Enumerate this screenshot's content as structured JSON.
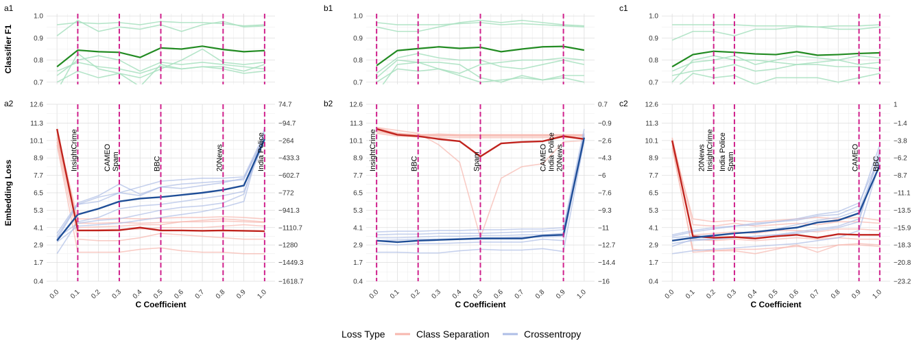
{
  "colors": {
    "f1_main": "#228b22",
    "f1_faint": "#a8e0c0",
    "cs_main": "#c0231d",
    "cs_faint": "#f7b7ae",
    "ce_main": "#1f4e97",
    "ce_faint": "#aebee6",
    "vline": "#d0208c",
    "grid": "#dddddd"
  },
  "legend": {
    "title": "Loss Type",
    "items": [
      "Class Separation",
      "Crossentropy"
    ]
  },
  "chart_data": [
    {
      "panel": "a",
      "type": "line",
      "top_label": "a1",
      "bottom_label": "a2",
      "xlabel": "C Coefficient",
      "f1_ylabel": "Classifier F1",
      "loss_ylabel": "Embedding Loss",
      "x": [
        0.0,
        0.1,
        0.2,
        0.3,
        0.4,
        0.5,
        0.6,
        0.7,
        0.8,
        0.9,
        1.0
      ],
      "x_tick_labels": [
        "0.0",
        "0.1",
        "0.2",
        "0.3",
        "0.4",
        "0.5",
        "0.6",
        "0.7",
        "0.8",
        "0.9",
        "1.0"
      ],
      "f1_ylim": [
        0.69,
        1.01
      ],
      "f1_ticks": [
        0.7,
        0.8,
        0.9,
        1.0
      ],
      "f1_tick_labels": [
        "0.7",
        "0.8",
        "0.9",
        "1.0"
      ],
      "f1_mean": [
        0.77,
        0.845,
        0.838,
        0.835,
        0.812,
        0.855,
        0.85,
        0.863,
        0.848,
        0.838,
        0.843
      ],
      "f1_datasets": [
        [
          0.96,
          0.97,
          0.965,
          0.97,
          0.96,
          0.975,
          0.97,
          0.97,
          0.965,
          0.955,
          0.96
        ],
        [
          0.91,
          0.98,
          0.93,
          0.95,
          0.94,
          0.96,
          0.93,
          0.96,
          0.975,
          0.95,
          0.955
        ],
        [
          0.73,
          0.8,
          0.82,
          0.8,
          0.75,
          0.79,
          0.78,
          0.79,
          0.78,
          0.77,
          0.76
        ],
        [
          0.75,
          0.79,
          0.77,
          0.76,
          0.74,
          0.77,
          0.76,
          0.77,
          0.76,
          0.74,
          0.75
        ],
        [
          0.66,
          0.83,
          0.76,
          0.74,
          0.72,
          0.76,
          0.8,
          0.85,
          0.79,
          0.78,
          0.79
        ],
        [
          0.7,
          0.75,
          0.72,
          0.74,
          0.68,
          0.78,
          0.76,
          0.77,
          0.77,
          0.75,
          0.78
        ]
      ],
      "loss_ylim": [
        0.4,
        12.6
      ],
      "loss_ticks": [
        0.4,
        1.7,
        2.9,
        4.1,
        5.3,
        6.5,
        7.7,
        8.9,
        10.1,
        11.3,
        12.6
      ],
      "loss_tick_labels": [
        "0.4",
        "1.7",
        "2.9",
        "4.1",
        "5.3",
        "6.5",
        "7.7",
        "8.9",
        "10.1",
        "11.3",
        "12.6"
      ],
      "right_tick_labels": [
        "−1618.7",
        "−1449.3",
        "−1280",
        "−1110.7",
        "−941.3",
        "−772",
        "−602.7",
        "−433.3",
        "−264",
        "−94.7",
        "74.7"
      ],
      "cs_mean": [
        10.9,
        3.9,
        3.9,
        3.92,
        4.1,
        3.9,
        3.9,
        3.88,
        3.9,
        3.88,
        3.85
      ],
      "cs_datasets": [
        [
          10.7,
          4.7,
          4.7,
          4.75,
          4.7,
          4.75,
          4.8,
          4.8,
          4.85,
          4.8,
          4.7
        ],
        [
          10.5,
          4.4,
          4.4,
          4.45,
          4.4,
          4.45,
          4.5,
          4.5,
          4.55,
          4.5,
          4.45
        ],
        [
          10.0,
          3.3,
          3.2,
          3.2,
          3.4,
          3.7,
          3.6,
          3.5,
          3.4,
          3.3,
          3.3
        ],
        [
          9.8,
          2.4,
          2.4,
          2.4,
          2.6,
          2.7,
          2.5,
          2.4,
          2.4,
          2.3,
          2.3
        ],
        [
          10.2,
          4.1,
          4.15,
          4.2,
          4.3,
          4.3,
          4.5,
          4.6,
          4.7,
          4.6,
          4.5
        ],
        [
          10.3,
          3.9,
          3.95,
          4.0,
          4.0,
          4.1,
          4.1,
          4.1,
          4.2,
          4.3,
          4.2
        ]
      ],
      "ce_mean": [
        3.2,
        5.0,
        5.4,
        5.9,
        6.1,
        6.2,
        6.35,
        6.5,
        6.7,
        7.0,
        10.2
      ],
      "ce_datasets": [
        [
          3.7,
          5.8,
          6.3,
          7.1,
          6.4,
          6.9,
          7.1,
          7.2,
          7.3,
          7.4,
          10.5
        ],
        [
          3.3,
          5.7,
          6.2,
          6.5,
          6.9,
          7.3,
          7.4,
          7.5,
          7.5,
          7.6,
          10.6
        ],
        [
          3.5,
          5.7,
          5.9,
          6.5,
          6.3,
          6.9,
          6.8,
          7.0,
          7.2,
          7.5,
          10.3
        ],
        [
          3.4,
          4.4,
          4.6,
          4.7,
          5.0,
          5.3,
          5.5,
          5.6,
          5.8,
          6.4,
          10.8
        ],
        [
          2.3,
          4.5,
          4.8,
          5.4,
          5.6,
          5.7,
          5.9,
          6.1,
          6.3,
          6.6,
          10.1
        ],
        [
          3.1,
          4.2,
          4.3,
          4.4,
          4.6,
          4.8,
          5.0,
          5.2,
          5.5,
          5.9,
          11.0
        ]
      ],
      "vlines": [
        {
          "x": 0.1,
          "label": "InsightCrime"
        },
        {
          "x": 0.3,
          "label": "Spam"
        },
        {
          "x": 0.3,
          "label": "CAMEO"
        },
        {
          "x": 0.5,
          "label": "BBC"
        },
        {
          "x": 0.8,
          "label": "20News"
        },
        {
          "x": 1.0,
          "label": "India Police"
        }
      ]
    },
    {
      "panel": "b",
      "type": "line",
      "top_label": "b1",
      "bottom_label": "b2",
      "xlabel": "C Coefficient",
      "x": [
        0.0,
        0.1,
        0.2,
        0.3,
        0.4,
        0.5,
        0.6,
        0.7,
        0.8,
        0.9,
        1.0
      ],
      "x_tick_labels": [
        "0.0",
        "0.1",
        "0.2",
        "0.3",
        "0.4",
        "0.5",
        "0.6",
        "0.7",
        "0.8",
        "0.9",
        "1.0"
      ],
      "f1_ylim": [
        0.69,
        1.01
      ],
      "f1_ticks": [
        0.7,
        0.8,
        0.9,
        1.0
      ],
      "f1_tick_labels": [
        "0.7",
        "0.8",
        "0.9",
        "1.0"
      ],
      "f1_mean": [
        0.775,
        0.843,
        0.852,
        0.86,
        0.853,
        0.858,
        0.838,
        0.85,
        0.86,
        0.862,
        0.845
      ],
      "f1_datasets": [
        [
          0.97,
          0.96,
          0.96,
          0.96,
          0.965,
          0.97,
          0.96,
          0.965,
          0.96,
          0.955,
          0.95
        ],
        [
          0.95,
          0.93,
          0.93,
          0.95,
          0.97,
          0.98,
          0.97,
          0.98,
          0.97,
          0.96,
          0.955
        ],
        [
          0.74,
          0.81,
          0.83,
          0.81,
          0.8,
          0.8,
          0.77,
          0.76,
          0.78,
          0.8,
          0.78
        ],
        [
          0.72,
          0.8,
          0.79,
          0.79,
          0.78,
          0.72,
          0.7,
          0.73,
          0.71,
          0.73,
          0.73
        ],
        [
          0.65,
          0.78,
          0.79,
          0.76,
          0.74,
          0.78,
          0.79,
          0.8,
          0.8,
          0.81,
          0.8
        ],
        [
          0.7,
          0.76,
          0.75,
          0.76,
          0.73,
          0.7,
          0.71,
          0.72,
          0.71,
          0.72,
          0.7
        ]
      ],
      "loss_ylim": [
        0.4,
        12.6
      ],
      "loss_ticks": [
        0.4,
        1.7,
        2.9,
        4.1,
        5.3,
        6.5,
        7.7,
        8.9,
        10.1,
        11.3,
        12.6
      ],
      "loss_tick_labels": [
        "0.4",
        "1.7",
        "2.9",
        "4.1",
        "5.3",
        "6.5",
        "7.7",
        "8.9",
        "10.1",
        "11.3",
        "12.6"
      ],
      "right_tick_labels": [
        "−16",
        "−14.4",
        "−12.7",
        "−11",
        "−9.3",
        "−7.6",
        "−6",
        "−4.3",
        "−2.6",
        "−0.9",
        "0.7"
      ],
      "cs_mean": [
        10.9,
        10.5,
        10.4,
        10.2,
        10.05,
        9.0,
        9.9,
        10.0,
        10.05,
        10.4,
        10.2
      ],
      "cs_datasets": [
        [
          11.0,
          10.6,
          10.5,
          10.5,
          10.5,
          10.5,
          10.5,
          10.5,
          10.5,
          10.5,
          10.5
        ],
        [
          10.8,
          10.45,
          10.45,
          10.4,
          10.45,
          10.45,
          10.45,
          10.45,
          10.45,
          10.45,
          10.45
        ],
        [
          10.7,
          10.5,
          10.4,
          10.45,
          10.4,
          10.4,
          10.4,
          10.4,
          10.4,
          10.4,
          10.4
        ],
        [
          10.9,
          10.6,
          10.5,
          10.55,
          10.5,
          10.5,
          10.5,
          10.5,
          10.5,
          10.5,
          10.5
        ],
        [
          11.0,
          10.8,
          10.6,
          9.8,
          8.6,
          3.4,
          7.5,
          8.3,
          8.5,
          10.0,
          10.1
        ],
        [
          10.6,
          10.4,
          10.35,
          10.3,
          10.3,
          10.3,
          10.3,
          10.3,
          10.3,
          10.3,
          10.3
        ]
      ],
      "ce_mean": [
        3.2,
        3.1,
        3.2,
        3.25,
        3.3,
        3.35,
        3.35,
        3.35,
        3.55,
        3.6,
        10.3
      ],
      "ce_datasets": [
        [
          3.6,
          3.65,
          3.65,
          3.7,
          3.7,
          3.7,
          3.75,
          3.8,
          3.85,
          3.95,
          10.4
        ],
        [
          3.8,
          3.85,
          3.85,
          3.9,
          3.9,
          3.95,
          3.95,
          4.0,
          4.0,
          4.1,
          10.9
        ],
        [
          3.0,
          2.9,
          3.0,
          3.0,
          3.05,
          3.1,
          3.1,
          3.1,
          3.3,
          3.2,
          10.5
        ],
        [
          2.4,
          2.4,
          2.35,
          2.35,
          2.5,
          2.6,
          2.55,
          2.55,
          2.65,
          2.45,
          10.1
        ],
        [
          3.4,
          3.4,
          3.45,
          3.5,
          3.5,
          3.55,
          3.55,
          3.6,
          3.6,
          3.7,
          10.6
        ],
        [
          3.2,
          3.25,
          3.3,
          3.3,
          3.35,
          3.4,
          3.4,
          3.45,
          3.45,
          3.5,
          10.2
        ]
      ],
      "vlines": [
        {
          "x": 0.0,
          "label": "InsightCrime"
        },
        {
          "x": 0.2,
          "label": "BBC"
        },
        {
          "x": 0.5,
          "label": "Spam"
        },
        {
          "x": 0.9,
          "label": "20News"
        },
        {
          "x": 0.9,
          "label": "India Police"
        },
        {
          "x": 0.9,
          "label": "CAMEO"
        }
      ]
    },
    {
      "panel": "c",
      "type": "line",
      "top_label": "c1",
      "bottom_label": "c2",
      "xlabel": "C Coefficient",
      "x": [
        0.0,
        0.1,
        0.2,
        0.3,
        0.4,
        0.5,
        0.6,
        0.7,
        0.8,
        0.9,
        1.0
      ],
      "x_tick_labels": [
        "0.0",
        "0.1",
        "0.2",
        "0.3",
        "0.4",
        "0.5",
        "0.6",
        "0.7",
        "0.8",
        "0.9",
        "1.0"
      ],
      "f1_ylim": [
        0.69,
        1.01
      ],
      "f1_ticks": [
        0.7,
        0.8,
        0.9,
        1.0
      ],
      "f1_tick_labels": [
        "0.7",
        "0.8",
        "0.9",
        "1.0"
      ],
      "f1_mean": [
        0.77,
        0.825,
        0.84,
        0.835,
        0.828,
        0.825,
        0.838,
        0.822,
        0.825,
        0.83,
        0.833
      ],
      "f1_datasets": [
        [
          0.96,
          0.96,
          0.96,
          0.96,
          0.955,
          0.955,
          0.955,
          0.95,
          0.955,
          0.955,
          0.96
        ],
        [
          0.89,
          0.93,
          0.93,
          0.91,
          0.94,
          0.94,
          0.95,
          0.95,
          0.94,
          0.94,
          0.95
        ],
        [
          0.75,
          0.79,
          0.8,
          0.82,
          0.78,
          0.8,
          0.82,
          0.81,
          0.8,
          0.82,
          0.81
        ],
        [
          0.73,
          0.75,
          0.76,
          0.78,
          0.75,
          0.76,
          0.78,
          0.78,
          0.77,
          0.77,
          0.76
        ],
        [
          0.66,
          0.74,
          0.72,
          0.73,
          0.69,
          0.72,
          0.72,
          0.72,
          0.7,
          0.72,
          0.74
        ],
        [
          0.7,
          0.8,
          0.82,
          0.8,
          0.8,
          0.79,
          0.78,
          0.79,
          0.8,
          0.78,
          0.79
        ]
      ],
      "loss_ylim": [
        0.4,
        12.6
      ],
      "loss_ticks": [
        0.4,
        1.7,
        2.9,
        4.1,
        5.3,
        6.5,
        7.7,
        8.9,
        10.1,
        11.3,
        12.6
      ],
      "loss_tick_labels": [
        "0.4",
        "1.7",
        "2.9",
        "4.1",
        "5.3",
        "6.5",
        "7.7",
        "8.9",
        "10.1",
        "11.3",
        "12.6"
      ],
      "right_tick_labels": [
        "−23.2",
        "−20.8",
        "−18.3",
        "−15.9",
        "−13.5",
        "−11.1",
        "−8.7",
        "−6.2",
        "−3.8",
        "−1.4",
        "1"
      ],
      "cs_mean": [
        10.1,
        3.5,
        3.4,
        3.45,
        3.35,
        3.5,
        3.6,
        3.4,
        3.65,
        3.6,
        3.6
      ],
      "cs_datasets": [
        [
          10.0,
          4.7,
          4.5,
          4.6,
          4.5,
          4.6,
          4.7,
          4.8,
          4.7,
          4.8,
          4.6
        ],
        [
          10.3,
          4.3,
          4.2,
          4.4,
          4.2,
          4.3,
          4.4,
          4.3,
          4.5,
          4.5,
          4.4
        ],
        [
          9.8,
          2.4,
          2.5,
          2.5,
          2.3,
          2.6,
          2.9,
          2.4,
          2.9,
          2.9,
          2.8
        ],
        [
          9.6,
          2.6,
          2.5,
          2.6,
          2.6,
          2.7,
          2.8,
          2.7,
          2.9,
          3.0,
          2.9
        ],
        [
          10.0,
          3.6,
          3.7,
          3.8,
          3.7,
          3.9,
          3.9,
          3.8,
          4.0,
          4.0,
          3.9
        ],
        [
          10.2,
          3.3,
          3.2,
          3.3,
          3.2,
          3.3,
          3.4,
          3.3,
          3.4,
          3.3,
          3.3
        ]
      ],
      "ce_mean": [
        3.2,
        3.4,
        3.55,
        3.7,
        3.8,
        3.95,
        4.1,
        4.45,
        4.6,
        5.1,
        8.4
      ],
      "ce_datasets": [
        [
          3.5,
          3.8,
          4.0,
          4.2,
          4.3,
          4.5,
          4.6,
          4.9,
          5.0,
          5.6,
          9.8
        ],
        [
          3.6,
          3.9,
          4.1,
          4.2,
          4.4,
          4.5,
          4.7,
          5.0,
          5.2,
          5.8,
          9.0
        ],
        [
          2.3,
          2.5,
          2.6,
          2.7,
          2.8,
          2.9,
          3.0,
          3.2,
          3.4,
          3.9,
          8.6
        ],
        [
          3.4,
          3.5,
          3.6,
          3.7,
          3.8,
          4.0,
          4.3,
          4.6,
          4.8,
          5.3,
          8.9
        ],
        [
          3.0,
          3.2,
          3.3,
          3.4,
          3.5,
          3.6,
          3.8,
          4.0,
          4.2,
          4.7,
          9.2
        ],
        [
          2.8,
          3.3,
          3.3,
          3.4,
          3.5,
          3.6,
          3.7,
          3.9,
          4.1,
          4.5,
          9.5
        ]
      ],
      "vlines": [
        {
          "x": 0.2,
          "label": "InsightCrime"
        },
        {
          "x": 0.2,
          "label": "20News"
        },
        {
          "x": 0.3,
          "label": "Spam"
        },
        {
          "x": 0.3,
          "label": "India Police"
        },
        {
          "x": 0.9,
          "label": "CAMEO"
        },
        {
          "x": 1.0,
          "label": "BBC"
        }
      ]
    }
  ]
}
